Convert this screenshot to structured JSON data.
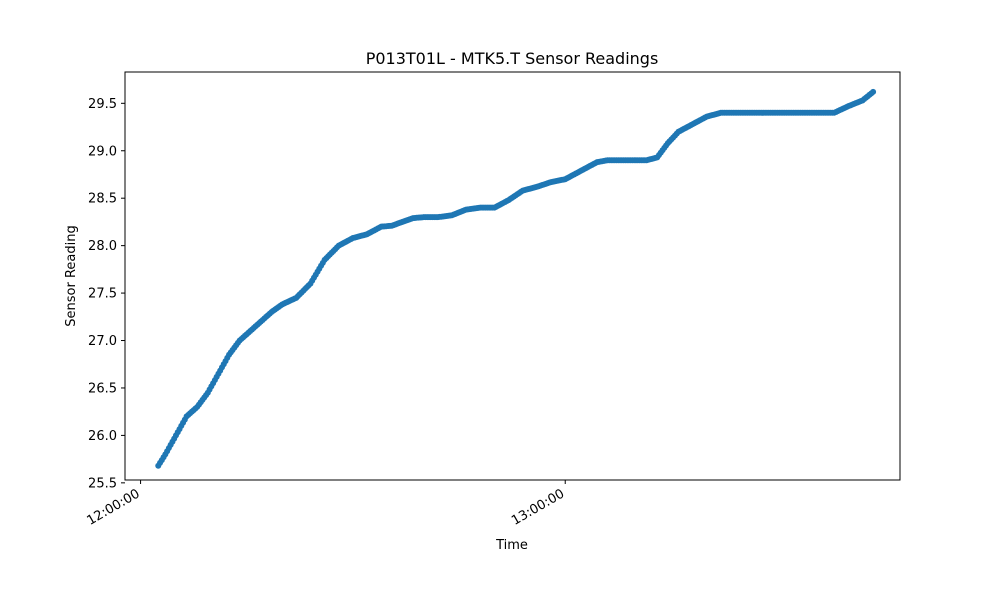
{
  "chart_data": {
    "type": "scatter",
    "title": "P013T01L - MTK5.T Sensor Readings",
    "xlabel": "Time",
    "ylabel": "Sensor Reading",
    "x_tick_labels": [
      "12:00:00",
      "13:00:00"
    ],
    "x_ticks_minutes": [
      0,
      60
    ],
    "xlim_minutes": [
      -2.2,
      107.3
    ],
    "ylim": [
      25.53,
      29.83
    ],
    "y_ticks": [
      "25.5",
      "26.0",
      "26.5",
      "27.0",
      "27.5",
      "28.0",
      "28.5",
      "29.0",
      "29.5"
    ],
    "grid": false,
    "series": [
      {
        "color": "#1f77b4",
        "x_minutes": [
          2.5,
          3.5,
          5,
          6.5,
          8,
          9.5,
          11,
          12.5,
          14,
          15.5,
          17,
          18.5,
          20,
          22,
          24,
          26,
          28,
          30,
          32,
          34,
          35.5,
          37,
          38.5,
          40,
          42,
          44,
          46,
          48,
          50,
          52,
          54,
          56,
          58,
          60,
          61.5,
          63,
          64.5,
          66,
          68,
          70,
          71.5,
          73,
          74.5,
          76,
          78,
          80,
          82,
          84,
          86,
          88,
          90,
          92,
          94,
          96,
          98,
          100,
          102,
          103.5
        ],
        "y": [
          25.68,
          25.8,
          26.0,
          26.2,
          26.3,
          26.45,
          26.65,
          26.85,
          27.0,
          27.1,
          27.2,
          27.3,
          27.38,
          27.45,
          27.6,
          27.85,
          28.0,
          28.08,
          28.12,
          28.2,
          28.21,
          28.25,
          28.29,
          28.3,
          28.3,
          28.32,
          28.38,
          28.4,
          28.4,
          28.48,
          28.58,
          28.62,
          28.67,
          28.7,
          28.76,
          28.82,
          28.88,
          28.9,
          28.9,
          28.9,
          28.9,
          28.93,
          29.08,
          29.2,
          29.28,
          29.36,
          29.4,
          29.4,
          29.4,
          29.4,
          29.4,
          29.4,
          29.4,
          29.4,
          29.4,
          29.47,
          29.53,
          29.62
        ]
      }
    ]
  }
}
